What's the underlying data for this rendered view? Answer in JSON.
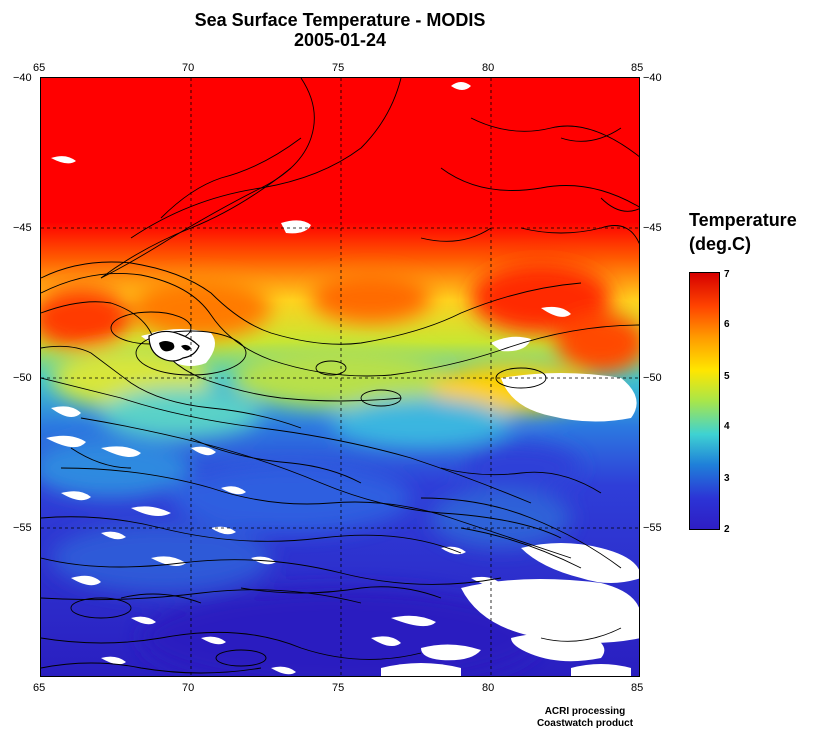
{
  "title_line1": "Sea Surface Temperature - MODIS",
  "title_line2": "2005-01-24",
  "map": {
    "lon_ticks": [
      "65",
      "70",
      "75",
      "80",
      "85"
    ],
    "lat_ticks": [
      "−40",
      "−45",
      "−50",
      "−55"
    ],
    "lon_range": [
      65,
      85
    ],
    "lat_range": [
      -40,
      -60
    ],
    "grid": true,
    "gridline_lons": [
      70,
      75,
      80
    ],
    "gridline_lats": [
      -45,
      -50,
      -55
    ]
  },
  "colorbar": {
    "title_line1": "Temperature",
    "title_line2": "(deg.C)",
    "ticks": [
      "7",
      "6",
      "5",
      "4",
      "3",
      "2"
    ],
    "min": 2,
    "max": 7,
    "colors": [
      "#d60000",
      "#ff4400",
      "#ff9a00",
      "#ffe600",
      "#a8e64a",
      "#3ed2d2",
      "#1f7fd9",
      "#2c34d6",
      "#2e1ec4"
    ]
  },
  "credit_line1": "ACRI processing",
  "credit_line2": "Coastwatch product"
}
